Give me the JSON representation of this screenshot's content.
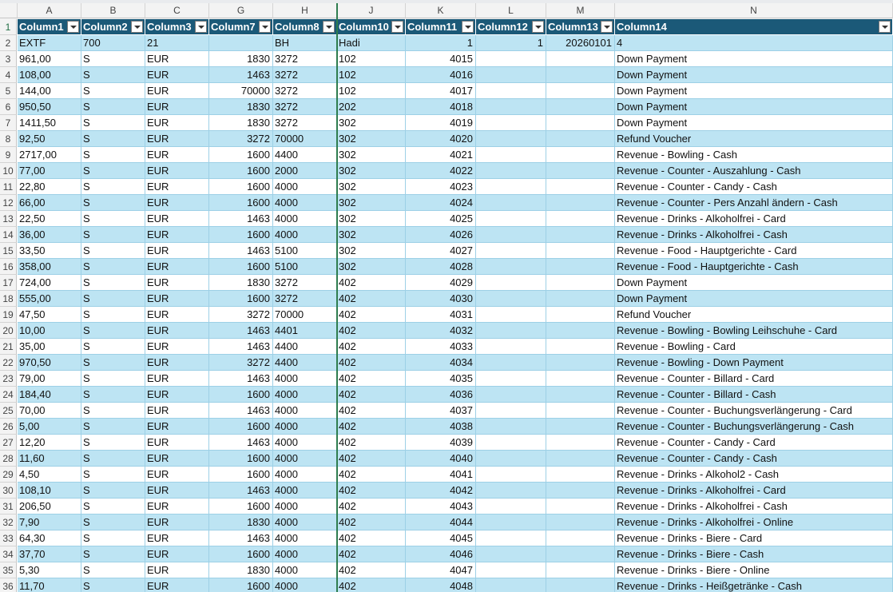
{
  "column_letters": [
    "A",
    "B",
    "C",
    "G",
    "H",
    "J",
    "K",
    "L",
    "M",
    "N"
  ],
  "row_numbers": [
    "1",
    "2",
    "3",
    "4",
    "5",
    "6",
    "7",
    "8",
    "9",
    "10",
    "11",
    "12",
    "13",
    "14",
    "15",
    "16",
    "17",
    "18",
    "19",
    "20",
    "21",
    "22",
    "23",
    "24",
    "25",
    "26",
    "27",
    "28",
    "29",
    "30",
    "31",
    "32",
    "33",
    "34",
    "35",
    "36"
  ],
  "table": {
    "headers": [
      "Column1",
      "Column2",
      "Column3",
      "Column7",
      "Column8",
      "Column10",
      "Column11",
      "Column12",
      "Column13",
      "Column14"
    ],
    "rows": [
      [
        "EXTF",
        "700",
        "21",
        "",
        "BH",
        "Hadi",
        "1",
        "1",
        "20260101",
        "4"
      ],
      [
        "961,00",
        "S",
        "EUR",
        "1830",
        "3272",
        "102",
        "4015",
        "",
        "",
        "Down Payment"
      ],
      [
        "108,00",
        "S",
        "EUR",
        "1463",
        "3272",
        "102",
        "4016",
        "",
        "",
        "Down Payment"
      ],
      [
        "144,00",
        "S",
        "EUR",
        "70000",
        "3272",
        "102",
        "4017",
        "",
        "",
        "Down Payment"
      ],
      [
        "950,50",
        "S",
        "EUR",
        "1830",
        "3272",
        "202",
        "4018",
        "",
        "",
        "Down Payment"
      ],
      [
        "1411,50",
        "S",
        "EUR",
        "1830",
        "3272",
        "302",
        "4019",
        "",
        "",
        "Down Payment"
      ],
      [
        "92,50",
        "S",
        "EUR",
        "3272",
        "70000",
        "302",
        "4020",
        "",
        "",
        "Refund Voucher"
      ],
      [
        "2717,00",
        "S",
        "EUR",
        "1600",
        "4400",
        "302",
        "4021",
        "",
        "",
        "Revenue - Bowling - Cash"
      ],
      [
        "77,00",
        "S",
        "EUR",
        "1600",
        "2000",
        "302",
        "4022",
        "",
        "",
        "Revenue - Counter - Auszahlung - Cash"
      ],
      [
        "22,80",
        "S",
        "EUR",
        "1600",
        "4000",
        "302",
        "4023",
        "",
        "",
        "Revenue - Counter - Candy - Cash"
      ],
      [
        "66,00",
        "S",
        "EUR",
        "1600",
        "4000",
        "302",
        "4024",
        "",
        "",
        "Revenue - Counter - Pers Anzahl ändern - Cash"
      ],
      [
        "22,50",
        "S",
        "EUR",
        "1463",
        "4000",
        "302",
        "4025",
        "",
        "",
        "Revenue - Drinks - Alkoholfrei - Card"
      ],
      [
        "36,00",
        "S",
        "EUR",
        "1600",
        "4000",
        "302",
        "4026",
        "",
        "",
        "Revenue - Drinks - Alkoholfrei - Cash"
      ],
      [
        "33,50",
        "S",
        "EUR",
        "1463",
        "5100",
        "302",
        "4027",
        "",
        "",
        "Revenue - Food - Hauptgerichte - Card"
      ],
      [
        "358,00",
        "S",
        "EUR",
        "1600",
        "5100",
        "302",
        "4028",
        "",
        "",
        "Revenue - Food - Hauptgerichte - Cash"
      ],
      [
        "724,00",
        "S",
        "EUR",
        "1830",
        "3272",
        "402",
        "4029",
        "",
        "",
        "Down Payment"
      ],
      [
        "555,00",
        "S",
        "EUR",
        "1600",
        "3272",
        "402",
        "4030",
        "",
        "",
        "Down Payment"
      ],
      [
        "47,50",
        "S",
        "EUR",
        "3272",
        "70000",
        "402",
        "4031",
        "",
        "",
        "Refund Voucher"
      ],
      [
        "10,00",
        "S",
        "EUR",
        "1463",
        "4401",
        "402",
        "4032",
        "",
        "",
        "Revenue - Bowling - Bowling Leihschuhe - Card"
      ],
      [
        "35,00",
        "S",
        "EUR",
        "1463",
        "4400",
        "402",
        "4033",
        "",
        "",
        "Revenue - Bowling - Card"
      ],
      [
        "970,50",
        "S",
        "EUR",
        "3272",
        "4400",
        "402",
        "4034",
        "",
        "",
        "Revenue - Bowling - Down Payment"
      ],
      [
        "79,00",
        "S",
        "EUR",
        "1463",
        "4000",
        "402",
        "4035",
        "",
        "",
        "Revenue - Counter - Billard - Card"
      ],
      [
        "184,40",
        "S",
        "EUR",
        "1600",
        "4000",
        "402",
        "4036",
        "",
        "",
        "Revenue - Counter - Billard - Cash"
      ],
      [
        "70,00",
        "S",
        "EUR",
        "1463",
        "4000",
        "402",
        "4037",
        "",
        "",
        "Revenue - Counter - Buchungsverlängerung - Card"
      ],
      [
        "5,00",
        "S",
        "EUR",
        "1600",
        "4000",
        "402",
        "4038",
        "",
        "",
        "Revenue - Counter - Buchungsverlängerung - Cash"
      ],
      [
        "12,20",
        "S",
        "EUR",
        "1463",
        "4000",
        "402",
        "4039",
        "",
        "",
        "Revenue - Counter - Candy - Card"
      ],
      [
        "11,60",
        "S",
        "EUR",
        "1600",
        "4000",
        "402",
        "4040",
        "",
        "",
        "Revenue - Counter - Candy - Cash"
      ],
      [
        "4,50",
        "S",
        "EUR",
        "1600",
        "4000",
        "402",
        "4041",
        "",
        "",
        "Revenue - Drinks - Alkohol2 - Cash"
      ],
      [
        "108,10",
        "S",
        "EUR",
        "1463",
        "4000",
        "402",
        "4042",
        "",
        "",
        "Revenue - Drinks - Alkoholfrei - Card"
      ],
      [
        "206,50",
        "S",
        "EUR",
        "1600",
        "4000",
        "402",
        "4043",
        "",
        "",
        "Revenue - Drinks - Alkoholfrei - Cash"
      ],
      [
        "7,90",
        "S",
        "EUR",
        "1830",
        "4000",
        "402",
        "4044",
        "",
        "",
        "Revenue - Drinks - Alkoholfrei - Online"
      ],
      [
        "64,30",
        "S",
        "EUR",
        "1463",
        "4000",
        "402",
        "4045",
        "",
        "",
        "Revenue - Drinks - Biere - Card"
      ],
      [
        "37,70",
        "S",
        "EUR",
        "1600",
        "4000",
        "402",
        "4046",
        "",
        "",
        "Revenue - Drinks - Biere - Cash"
      ],
      [
        "5,30",
        "S",
        "EUR",
        "1830",
        "4000",
        "402",
        "4047",
        "",
        "",
        "Revenue - Drinks - Biere - Online"
      ],
      [
        "11,70",
        "S",
        "EUR",
        "1600",
        "4000",
        "402",
        "4048",
        "",
        "",
        "Revenue - Drinks - Heißgetränke - Cash"
      ]
    ]
  },
  "colors": {
    "header_fill": "#1b5978",
    "band_fill": "#bde4f3",
    "freeze_line": "#2e7d4f"
  }
}
